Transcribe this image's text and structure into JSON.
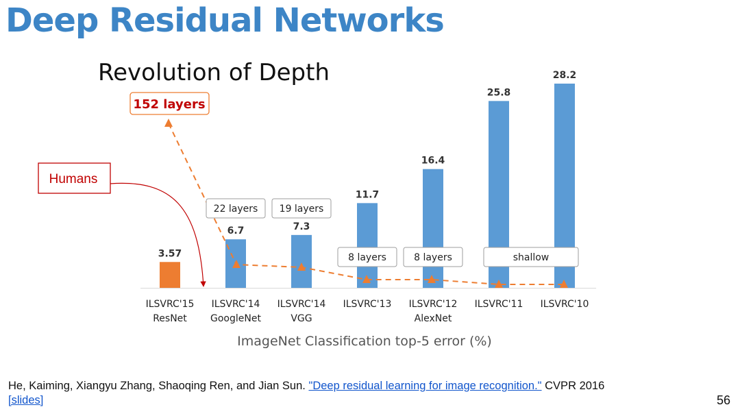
{
  "slide": {
    "title": "Deep Residual Networks",
    "title_color": "#3d85c6",
    "page_number": "56"
  },
  "citation": {
    "authors": "He, Kaiming, Xiangyu Zhang, Shaoqing Ren, and Jian Sun.",
    "paper_link": "\"Deep residual learning for image recognition.\"",
    "venue": "CVPR 2016",
    "slides_link": "[slides]",
    "link_color": "#1155cc"
  },
  "chart_data": {
    "type": "bar",
    "title": "Revolution of Depth",
    "xlabel": "ImageNet Classification top-5 error (%)",
    "ylabel": "",
    "ylim": [
      0,
      28.2
    ],
    "grid": false,
    "categories": [
      [
        "ILSVRC'15",
        "ResNet"
      ],
      [
        "ILSVRC'14",
        "GoogleNet"
      ],
      [
        "ILSVRC'14",
        "VGG"
      ],
      [
        "ILSVRC'13"
      ],
      [
        "ILSVRC'12",
        "AlexNet"
      ],
      [
        "ILSVRC'11"
      ],
      [
        "ILSVRC'10"
      ]
    ],
    "values": [
      3.57,
      6.7,
      7.3,
      11.7,
      16.4,
      25.8,
      28.2
    ],
    "value_labels": [
      "3.57",
      "6.7",
      "7.3",
      "11.7",
      "16.4",
      "25.8",
      "28.2"
    ],
    "bar_colors": [
      "#ed7d31",
      "#5b9bd5",
      "#5b9bd5",
      "#5b9bd5",
      "#5b9bd5",
      "#5b9bd5",
      "#5b9bd5"
    ],
    "layer_callouts": [
      {
        "category_index": 1,
        "text": "22 layers"
      },
      {
        "category_index": 2,
        "text": "19 layers"
      },
      {
        "category_index": 3,
        "text": "8 layers"
      },
      {
        "category_index": 4,
        "text": "8 layers"
      },
      {
        "category_index": 5,
        "text": "shallow"
      }
    ],
    "annotations": {
      "depth_flag": "152 layers",
      "human_label": "Humans"
    },
    "colors": {
      "trend_line": "#ed7d31",
      "flag_text": "#c00000",
      "human_arrow": "#c00000"
    }
  }
}
